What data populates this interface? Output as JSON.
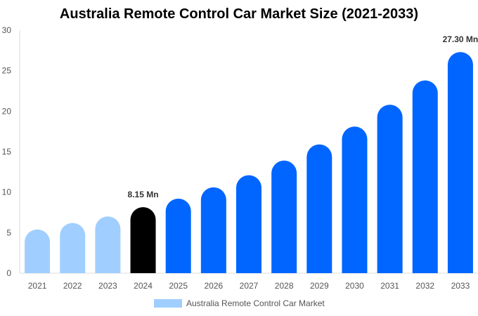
{
  "chart_data": {
    "type": "bar",
    "title": "Australia Remote Control Car Market Size (2021-2033)",
    "categories": [
      "2021",
      "2022",
      "2023",
      "2024",
      "2025",
      "2026",
      "2027",
      "2028",
      "2029",
      "2030",
      "2031",
      "2032",
      "2033"
    ],
    "series": [
      {
        "name": "Australia Remote Control Car Market",
        "values": [
          5.4,
          6.2,
          7.0,
          8.15,
          9.2,
          10.6,
          12.1,
          13.9,
          15.9,
          18.1,
          20.8,
          23.8,
          27.3
        ]
      }
    ],
    "bar_colors": [
      "#a0cfff",
      "#a0cfff",
      "#a0cfff",
      "#000000",
      "#0066ff",
      "#0066ff",
      "#0066ff",
      "#0066ff",
      "#0066ff",
      "#0066ff",
      "#0066ff",
      "#0066ff",
      "#0066ff"
    ],
    "data_labels": [
      {
        "index": 3,
        "text": "8.15 Mn"
      },
      {
        "index": 12,
        "text": "27.30 Mn"
      }
    ],
    "ylim": [
      0,
      30
    ],
    "yticks": [
      0,
      5,
      10,
      15,
      20,
      25,
      30
    ],
    "grid": false,
    "legend": "bottom"
  }
}
